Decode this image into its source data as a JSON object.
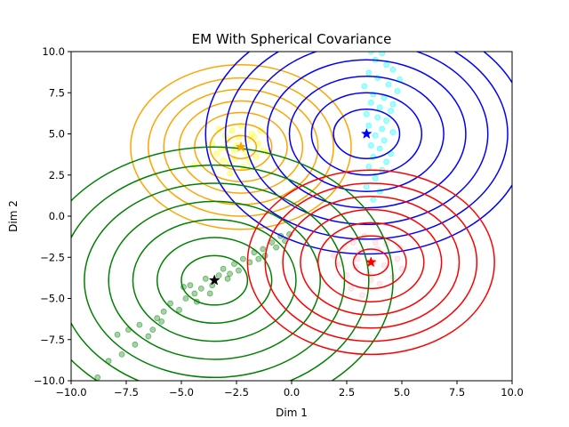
{
  "chart_data": {
    "type": "scatter",
    "title": "EM With Spherical Covariance",
    "xlabel": "Dim 1",
    "ylabel": "Dim 2",
    "xlim": [
      -10,
      10
    ],
    "ylim": [
      -10,
      10
    ],
    "x_ticks": [
      -10.0,
      -7.5,
      -5.0,
      -2.5,
      0.0,
      2.5,
      5.0,
      7.5,
      10.0
    ],
    "y_ticks": [
      -10.0,
      -7.5,
      -5.0,
      -2.5,
      0.0,
      2.5,
      5.0,
      7.5,
      10.0
    ],
    "x_tick_labels": [
      "−10.0",
      "−7.5",
      "−5.0",
      "−2.5",
      "0.0",
      "2.5",
      "5.0",
      "7.5",
      "10.0"
    ],
    "y_tick_labels": [
      "−10.0",
      "−7.5",
      "−5.0",
      "−2.5",
      "0.0",
      "2.5",
      "5.0",
      "7.5",
      "10.0"
    ],
    "grid": false,
    "components": [
      {
        "point_color": "#ffff00",
        "contour_color": "#ffa500",
        "center_color": "#ffa500",
        "center": [
          -2.3,
          4.2
        ],
        "contour_radii": [
          0.7,
          1.4,
          2.1,
          2.8,
          3.5,
          4.2,
          5.0
        ],
        "points": [
          [
            -2.9,
            4.6
          ],
          [
            -2.1,
            3.9
          ],
          [
            -1.5,
            4.4
          ],
          [
            -2.6,
            3.5
          ],
          [
            -3.2,
            4.1
          ],
          [
            -1.8,
            5.0
          ],
          [
            -2.4,
            4.8
          ],
          [
            -1.9,
            3.3
          ],
          [
            -3.4,
            3.8
          ],
          [
            -2.7,
            5.2
          ],
          [
            -1.3,
            4.0
          ],
          [
            -2.2,
            3.0
          ],
          [
            -3.0,
            4.9
          ],
          [
            -2.5,
            4.3
          ],
          [
            -1.6,
            3.6
          ],
          [
            -3.6,
            4.4
          ],
          [
            -2.0,
            4.6
          ],
          [
            -2.8,
            3.2
          ],
          [
            -1.1,
            3.9
          ],
          [
            -2.3,
            5.5
          ],
          [
            -3.1,
            3.4
          ],
          [
            -1.7,
            4.8
          ],
          [
            -2.6,
            4.0
          ],
          [
            -4.4,
            3.1
          ],
          [
            -2.8,
            2.6
          ],
          [
            -1.4,
            5.2
          ],
          [
            -3.3,
            5.3
          ],
          [
            -2.0,
            3.6
          ]
        ]
      },
      {
        "point_color": "#00ffff",
        "contour_color": "#0000ff",
        "center_color": "#0000ff",
        "center": [
          3.4,
          5.0
        ],
        "contour_radii": [
          1.5,
          2.5,
          3.5,
          4.5,
          5.5,
          6.4,
          7.3
        ],
        "points": [
          [
            3.6,
            10.0
          ],
          [
            4.1,
            9.9
          ],
          [
            3.8,
            9.5
          ],
          [
            4.3,
            9.2
          ],
          [
            3.5,
            8.7
          ],
          [
            4.6,
            8.9
          ],
          [
            3.9,
            8.4
          ],
          [
            4.4,
            8.0
          ],
          [
            3.3,
            7.9
          ],
          [
            4.8,
            7.6
          ],
          [
            3.7,
            7.4
          ],
          [
            4.2,
            7.2
          ],
          [
            3.6,
            6.9
          ],
          [
            4.0,
            6.6
          ],
          [
            4.5,
            6.4
          ],
          [
            3.4,
            6.2
          ],
          [
            3.9,
            6.0
          ],
          [
            4.3,
            5.8
          ],
          [
            3.5,
            5.5
          ],
          [
            4.1,
            5.3
          ],
          [
            4.6,
            5.1
          ],
          [
            3.8,
            4.9
          ],
          [
            4.2,
            4.6
          ],
          [
            3.6,
            4.3
          ],
          [
            4.0,
            4.1
          ],
          [
            4.5,
            3.8
          ],
          [
            3.7,
            3.6
          ],
          [
            4.3,
            3.3
          ],
          [
            3.5,
            3.0
          ],
          [
            4.1,
            2.8
          ],
          [
            3.8,
            2.3
          ],
          [
            3.4,
            1.8
          ],
          [
            4.0,
            1.5
          ],
          [
            3.7,
            1.0
          ],
          [
            4.6,
            6.8
          ],
          [
            4.9,
            8.3
          ]
        ]
      },
      {
        "point_color": "#008000",
        "contour_color": "#008000",
        "center_color": "#000000",
        "center": [
          -3.5,
          -3.9
        ],
        "contour_radii": [
          1.5,
          2.6,
          3.7,
          4.8,
          5.9,
          7.0,
          8.1
        ],
        "points": [
          [
            -8.8,
            -9.8
          ],
          [
            -8.3,
            -8.8
          ],
          [
            -7.7,
            -8.4
          ],
          [
            -7.9,
            -7.2
          ],
          [
            -7.1,
            -7.8
          ],
          [
            -7.4,
            -6.9
          ],
          [
            -6.9,
            -6.6
          ],
          [
            -6.5,
            -7.3
          ],
          [
            -6.1,
            -6.2
          ],
          [
            -5.8,
            -5.8
          ],
          [
            -5.5,
            -5.3
          ],
          [
            -5.9,
            -6.4
          ],
          [
            -5.1,
            -5.7
          ],
          [
            -4.8,
            -5.0
          ],
          [
            -4.4,
            -4.7
          ],
          [
            -4.6,
            -4.2
          ],
          [
            -4.1,
            -4.4
          ],
          [
            -3.9,
            -3.8
          ],
          [
            -3.6,
            -4.2
          ],
          [
            -3.3,
            -3.6
          ],
          [
            -3.1,
            -3.2
          ],
          [
            -2.9,
            -3.8
          ],
          [
            -2.6,
            -2.9
          ],
          [
            -2.4,
            -3.3
          ],
          [
            -2.2,
            -2.6
          ],
          [
            -1.9,
            -2.8
          ],
          [
            -1.7,
            -2.2
          ],
          [
            -1.5,
            -2.6
          ],
          [
            -1.3,
            -2.0
          ],
          [
            -1.2,
            -2.4
          ],
          [
            -0.9,
            -1.6
          ],
          [
            -0.7,
            -1.9
          ],
          [
            -0.5,
            -1.2
          ],
          [
            -0.3,
            -1.5
          ],
          [
            -0.1,
            -1.1
          ],
          [
            -4.9,
            -4.3
          ],
          [
            -3.7,
            -4.7
          ],
          [
            -2.8,
            -3.5
          ],
          [
            -6.3,
            -6.9
          ],
          [
            -4.3,
            -5.2
          ]
        ]
      },
      {
        "point_color": "#ffc0cb",
        "contour_color": "#ff0000",
        "center_color": "#ff0000",
        "center": [
          3.6,
          -2.8
        ],
        "contour_radii": [
          0.8,
          1.6,
          2.4,
          3.2,
          4.0,
          4.8,
          5.6
        ],
        "points": [
          [
            2.4,
            -1.9
          ],
          [
            3.1,
            -2.2
          ],
          [
            3.8,
            -1.6
          ],
          [
            4.4,
            -2.4
          ],
          [
            2.9,
            -3.1
          ],
          [
            3.5,
            -3.5
          ],
          [
            4.2,
            -3.0
          ],
          [
            4.8,
            -2.6
          ],
          [
            2.2,
            -2.9
          ],
          [
            3.3,
            -1.2
          ],
          [
            4.0,
            -4.1
          ],
          [
            2.7,
            -4.4
          ],
          [
            3.9,
            -2.0
          ],
          [
            4.6,
            -3.7
          ],
          [
            3.0,
            -2.6
          ],
          [
            3.6,
            -3.9
          ],
          [
            2.5,
            -3.6
          ],
          [
            4.3,
            -1.7
          ],
          [
            5.0,
            -3.2
          ],
          [
            3.2,
            -4.8
          ],
          [
            1.9,
            -2.4
          ],
          [
            4.9,
            -1.9
          ],
          [
            3.7,
            -2.8
          ],
          [
            2.8,
            -1.6
          ]
        ]
      }
    ]
  }
}
